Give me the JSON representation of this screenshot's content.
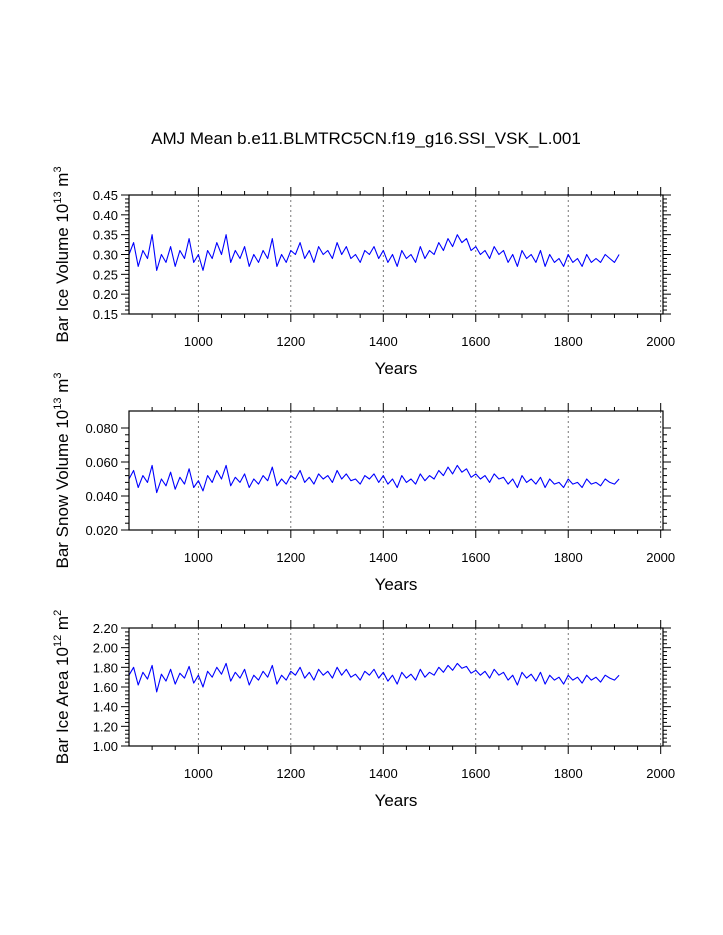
{
  "title": "AMJ Mean b.e11.BLMTRC5CN.f19_g16.SSI_VSK_L.001",
  "colors": {
    "series": "#0000ff",
    "grid": "#555555",
    "axis": "#000000"
  },
  "chart_data": [
    {
      "type": "line",
      "xlabel": "Years",
      "ylabel_text": "Bar Ice Volume 10",
      "ylabel_exponent": "13",
      "ylabel_unit": " m",
      "ylabel_unit_exponent": "3",
      "xlim": [
        850,
        2005
      ],
      "ylim": [
        0.15,
        0.45
      ],
      "x_ticks": [
        1000,
        1200,
        1400,
        1600,
        1800,
        2000
      ],
      "x_tick_labels": [
        "1000",
        "1200",
        "1400",
        "1600",
        "1800",
        "2000"
      ],
      "y_ticks": [
        0.15,
        0.2,
        0.25,
        0.3,
        0.35,
        0.4,
        0.45
      ],
      "y_tick_labels": [
        "0.15",
        "0.20",
        "0.25",
        "0.30",
        "0.35",
        "0.40",
        "0.45"
      ],
      "grid": "vertical dashed",
      "series": [
        {
          "x_start": 850,
          "x_step": 10,
          "values": [
            0.3,
            0.33,
            0.27,
            0.31,
            0.29,
            0.35,
            0.26,
            0.3,
            0.28,
            0.32,
            0.27,
            0.31,
            0.29,
            0.34,
            0.28,
            0.3,
            0.26,
            0.31,
            0.29,
            0.33,
            0.3,
            0.35,
            0.28,
            0.31,
            0.29,
            0.32,
            0.27,
            0.3,
            0.28,
            0.31,
            0.29,
            0.34,
            0.27,
            0.3,
            0.28,
            0.31,
            0.3,
            0.33,
            0.29,
            0.31,
            0.28,
            0.32,
            0.3,
            0.31,
            0.29,
            0.33,
            0.3,
            0.32,
            0.29,
            0.3,
            0.28,
            0.31,
            0.3,
            0.32,
            0.29,
            0.31,
            0.28,
            0.3,
            0.27,
            0.31,
            0.29,
            0.3,
            0.28,
            0.32,
            0.29,
            0.31,
            0.3,
            0.33,
            0.31,
            0.34,
            0.32,
            0.35,
            0.33,
            0.34,
            0.31,
            0.32,
            0.3,
            0.31,
            0.29,
            0.32,
            0.3,
            0.31,
            0.28,
            0.3,
            0.27,
            0.31,
            0.29,
            0.3,
            0.28,
            0.31,
            0.27,
            0.3,
            0.28,
            0.29,
            0.27,
            0.3,
            0.28,
            0.29,
            0.27,
            0.3,
            0.28,
            0.29,
            0.28,
            0.3,
            0.29,
            0.28,
            0.3
          ]
        }
      ]
    },
    {
      "type": "line",
      "xlabel": "Years",
      "ylabel_text": "Bar Snow Volume 10",
      "ylabel_exponent": "13",
      "ylabel_unit": " m",
      "ylabel_unit_exponent": "3",
      "xlim": [
        850,
        2005
      ],
      "ylim": [
        0.02,
        0.09
      ],
      "x_ticks": [
        1000,
        1200,
        1400,
        1600,
        1800,
        2000
      ],
      "x_tick_labels": [
        "1000",
        "1200",
        "1400",
        "1600",
        "1800",
        "2000"
      ],
      "y_ticks": [
        0.02,
        0.04,
        0.06,
        0.08
      ],
      "y_tick_labels": [
        "0.020",
        "0.040",
        "0.060",
        "0.080"
      ],
      "grid": "vertical dashed",
      "series": [
        {
          "x_start": 850,
          "x_step": 10,
          "values": [
            0.05,
            0.055,
            0.045,
            0.052,
            0.048,
            0.058,
            0.042,
            0.05,
            0.046,
            0.054,
            0.044,
            0.051,
            0.047,
            0.056,
            0.045,
            0.049,
            0.043,
            0.052,
            0.048,
            0.055,
            0.05,
            0.058,
            0.046,
            0.051,
            0.048,
            0.053,
            0.045,
            0.05,
            0.047,
            0.052,
            0.049,
            0.057,
            0.046,
            0.05,
            0.047,
            0.052,
            0.05,
            0.055,
            0.048,
            0.051,
            0.047,
            0.053,
            0.05,
            0.052,
            0.048,
            0.055,
            0.05,
            0.053,
            0.049,
            0.05,
            0.047,
            0.052,
            0.05,
            0.053,
            0.048,
            0.052,
            0.047,
            0.05,
            0.045,
            0.052,
            0.048,
            0.05,
            0.047,
            0.053,
            0.049,
            0.052,
            0.05,
            0.055,
            0.052,
            0.057,
            0.053,
            0.058,
            0.054,
            0.056,
            0.051,
            0.053,
            0.05,
            0.052,
            0.048,
            0.053,
            0.05,
            0.051,
            0.047,
            0.05,
            0.045,
            0.052,
            0.048,
            0.05,
            0.047,
            0.051,
            0.045,
            0.05,
            0.047,
            0.048,
            0.045,
            0.05,
            0.047,
            0.048,
            0.045,
            0.05,
            0.047,
            0.048,
            0.046,
            0.05,
            0.048,
            0.047,
            0.05
          ]
        }
      ]
    },
    {
      "type": "line",
      "xlabel": "Years",
      "ylabel_text": "Bar Ice Area 10",
      "ylabel_exponent": "12",
      "ylabel_unit": " m",
      "ylabel_unit_exponent": "2",
      "xlim": [
        850,
        2005
      ],
      "ylim": [
        1.0,
        2.2
      ],
      "x_ticks": [
        1000,
        1200,
        1400,
        1600,
        1800,
        2000
      ],
      "x_tick_labels": [
        "1000",
        "1200",
        "1400",
        "1600",
        "1800",
        "2000"
      ],
      "y_ticks": [
        1.0,
        1.2,
        1.4,
        1.6,
        1.8,
        2.0,
        2.2
      ],
      "y_tick_labels": [
        "1.00",
        "1.20",
        "1.40",
        "1.60",
        "1.80",
        "2.00",
        "2.20"
      ],
      "grid": "vertical dashed",
      "series": [
        {
          "x_start": 850,
          "x_step": 10,
          "values": [
            1.72,
            1.8,
            1.62,
            1.75,
            1.68,
            1.82,
            1.55,
            1.73,
            1.66,
            1.78,
            1.63,
            1.74,
            1.69,
            1.81,
            1.64,
            1.72,
            1.6,
            1.76,
            1.7,
            1.8,
            1.73,
            1.84,
            1.66,
            1.75,
            1.69,
            1.78,
            1.62,
            1.72,
            1.67,
            1.76,
            1.7,
            1.82,
            1.63,
            1.72,
            1.67,
            1.76,
            1.72,
            1.8,
            1.69,
            1.75,
            1.67,
            1.78,
            1.72,
            1.76,
            1.69,
            1.8,
            1.72,
            1.78,
            1.7,
            1.73,
            1.67,
            1.76,
            1.72,
            1.78,
            1.69,
            1.75,
            1.66,
            1.72,
            1.63,
            1.75,
            1.69,
            1.73,
            1.67,
            1.78,
            1.7,
            1.75,
            1.72,
            1.8,
            1.75,
            1.82,
            1.77,
            1.84,
            1.79,
            1.81,
            1.74,
            1.77,
            1.72,
            1.76,
            1.69,
            1.78,
            1.72,
            1.75,
            1.67,
            1.72,
            1.62,
            1.75,
            1.69,
            1.73,
            1.66,
            1.75,
            1.63,
            1.72,
            1.67,
            1.7,
            1.63,
            1.72,
            1.67,
            1.7,
            1.64,
            1.72,
            1.67,
            1.7,
            1.65,
            1.72,
            1.69,
            1.67,
            1.72
          ]
        }
      ]
    }
  ]
}
